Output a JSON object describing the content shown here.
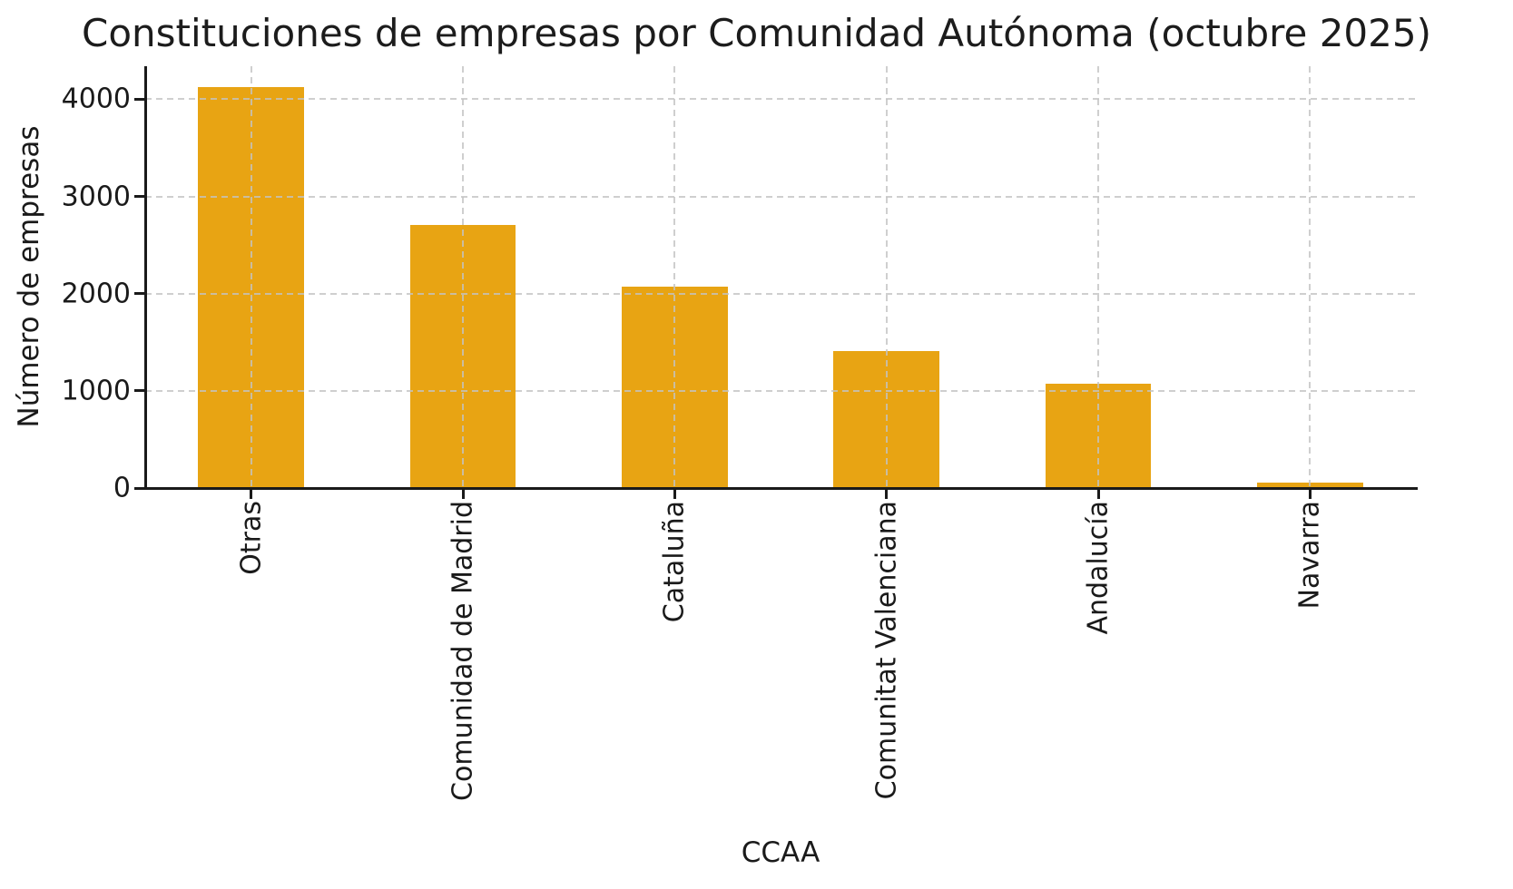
{
  "chart_data": {
    "type": "bar",
    "title": "Constituciones de empresas por Comunidad Autónoma (octubre 2025)",
    "xlabel": "CCAA",
    "ylabel": "Número de empresas",
    "categories": [
      "Otras",
      "Comunidad de Madrid",
      "Cataluña",
      "Comunitat Valenciana",
      "Andalucía",
      "Navarra"
    ],
    "values": [
      4130,
      2710,
      2070,
      1410,
      1070,
      60
    ],
    "yticks": [
      0,
      1000,
      2000,
      3000,
      4000
    ],
    "ylim": [
      0,
      4340
    ],
    "bar_color": "#E8A413",
    "grid": true,
    "grid_style": "dashed",
    "grid_color": "#c3c3c3",
    "bar_width_fraction": 0.5,
    "x_tick_rotation": 90,
    "legend": "none",
    "background": "#ffffff",
    "text_color": "#1a1a1a"
  }
}
